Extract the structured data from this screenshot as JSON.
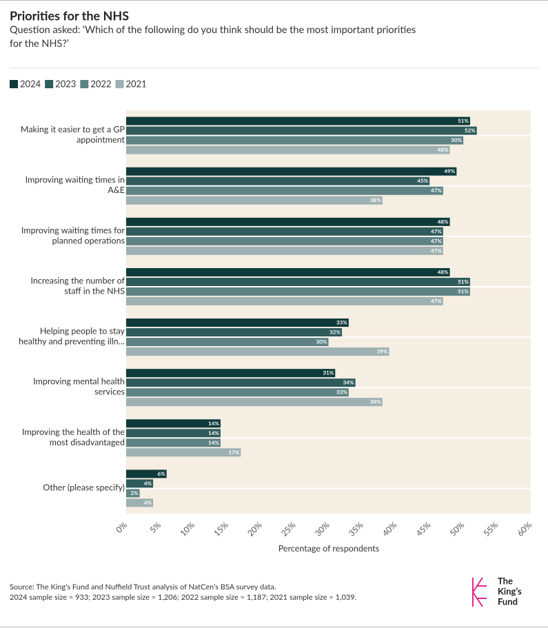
{
  "chart_data": {
    "type": "bar",
    "orientation": "horizontal",
    "title": "Priorities for the NHS",
    "subtitle": "Question asked: ‘Which of the following do you think should be the most important priorities for the NHS?’",
    "categories": [
      "Making it easier to get a GP appointment",
      "Improving waiting times in A&E",
      "Improving waiting times for planned operations",
      "Increasing the number of staff in the NHS",
      "Helping people to stay healthy and preventing illn…",
      "Improving mental health services",
      "Improving the health of the most disadvantaged",
      "Other (please specify)"
    ],
    "series": [
      {
        "name": "2024",
        "color": "#0e3a3b",
        "values": [
          51,
          49,
          48,
          48,
          33,
          31,
          14,
          6
        ],
        "value_labels": [
          "51%",
          "49%",
          "48%",
          "48%",
          "33%",
          "31%",
          "14%",
          "6%"
        ]
      },
      {
        "name": "2023",
        "color": "#2f5b5c",
        "values": [
          52,
          45,
          47,
          51,
          32,
          34,
          14,
          4
        ],
        "value_labels": [
          "52%",
          "45%",
          "47%",
          "51%",
          "32%",
          "34%",
          "14%",
          "4%"
        ]
      },
      {
        "name": "2022",
        "color": "#5f8384",
        "values": [
          50,
          47,
          47,
          51,
          30,
          33,
          14,
          2
        ],
        "value_labels": [
          "50%",
          "47%",
          "47%",
          "51%",
          "30%",
          "33%",
          "14%",
          "2%"
        ]
      },
      {
        "name": "2021",
        "color": "#9eb1b2",
        "values": [
          48,
          38,
          47,
          47,
          39,
          38,
          17,
          4
        ],
        "value_labels": [
          "48%",
          "38%",
          "47%",
          "47%",
          "39%",
          "38%",
          "17%",
          "4%"
        ]
      }
    ],
    "xlim": [
      0,
      60
    ],
    "xticks": [
      {
        "value": 0,
        "label": "0%"
      },
      {
        "value": 5,
        "label": "5%"
      },
      {
        "value": 10,
        "label": "10%"
      },
      {
        "value": 15,
        "label": "15%"
      },
      {
        "value": 20,
        "label": "20%"
      },
      {
        "value": 25,
        "label": "25%"
      },
      {
        "value": 30,
        "label": "30%"
      },
      {
        "value": 35,
        "label": "35%"
      },
      {
        "value": 40,
        "label": "40%"
      },
      {
        "value": 45,
        "label": "45%"
      },
      {
        "value": 50,
        "label": "50%"
      },
      {
        "value": 55,
        "label": "55%"
      },
      {
        "value": 60,
        "label": "60%"
      }
    ],
    "xlabel": "Percentage of respondents",
    "notes": [
      "Source: The King’s Fund and Nuffield Trust analysis of NatCen’s BSA survey data.",
      "2024 sample size = 933; 2023 sample size = 1,206; 2022 sample size = 1,187; 2021 sample size = 1,039."
    ],
    "logo": [
      "The",
      "King’s",
      "Fund"
    ]
  }
}
